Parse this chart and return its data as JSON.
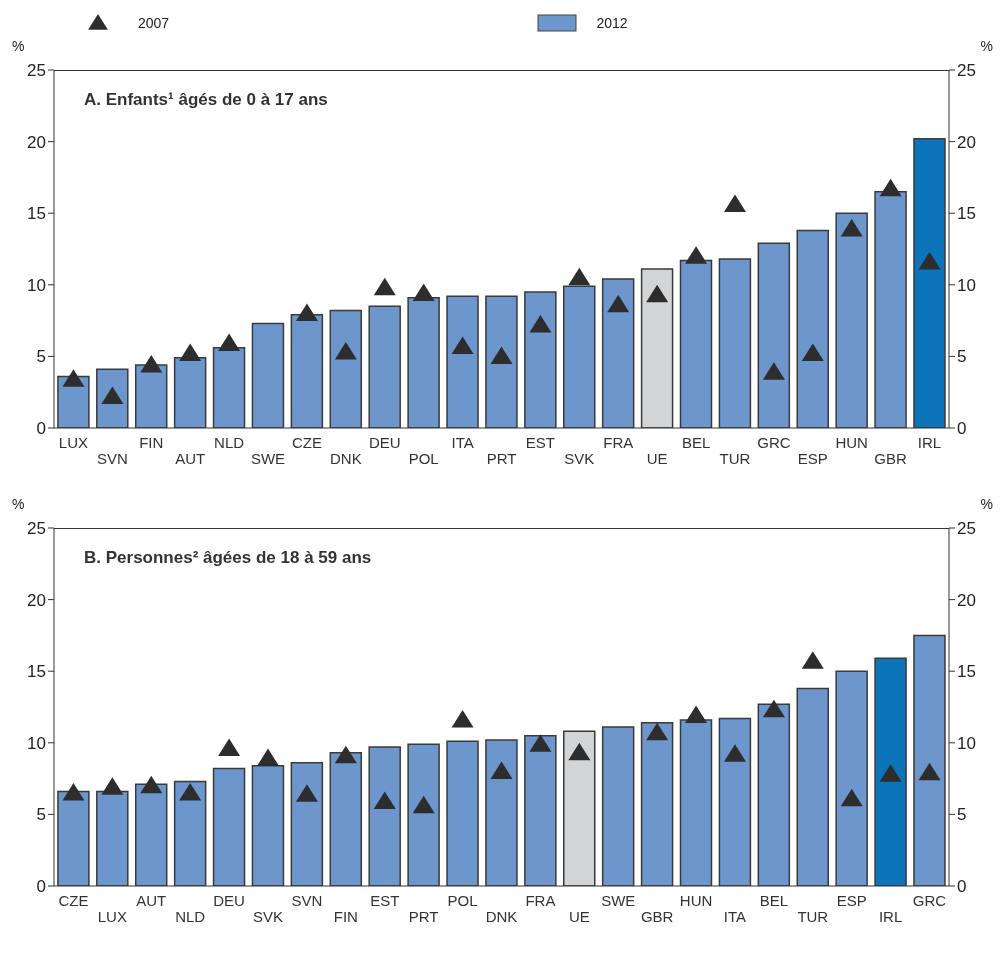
{
  "chart_data": [
    {
      "type": "bar",
      "title": "A. Enfants¹ âgés  de 0 à 17 ans",
      "ylabel": "%",
      "y2label": "%",
      "legend": "top",
      "marker": "triangle",
      "grid": false,
      "categories": [
        "LUX",
        "SVN",
        "FIN",
        "AUT",
        "NLD",
        "SWE",
        "CZE",
        "DNK",
        "DEU",
        "POL",
        "ITA",
        "PRT",
        "EST",
        "SVK",
        "FRA",
        "UE",
        "BEL",
        "TUR",
        "GRC",
        "ESP",
        "HUN",
        "GBR",
        "IRL"
      ],
      "ylim": [
        0,
        25
      ],
      "yticks": [
        0,
        5,
        10,
        15,
        20,
        25
      ],
      "y2lim": [
        0,
        25
      ],
      "y2ticks": [
        0,
        5,
        10,
        15,
        20,
        25
      ],
      "series": [
        {
          "name": "2007",
          "type": "scatter",
          "color": "#2d2d2d",
          "values": [
            3.4,
            2.2,
            4.4,
            5.2,
            5.9,
            null,
            8.0,
            5.3,
            9.8,
            9.4,
            5.7,
            5.0,
            7.2,
            10.5,
            8.6,
            9.3,
            12.0,
            15.6,
            3.9,
            5.2,
            13.9,
            16.7,
            11.6
          ]
        },
        {
          "name": "2012",
          "type": "bar",
          "color": "#6d96cd",
          "colors": [
            "#6d96cd",
            "#6d96cd",
            "#6d96cd",
            "#6d96cd",
            "#6d96cd",
            "#6d96cd",
            "#6d96cd",
            "#6d96cd",
            "#6d96cd",
            "#6d96cd",
            "#6d96cd",
            "#6d96cd",
            "#6d96cd",
            "#6d96cd",
            "#6d96cd",
            "#d3d4d6",
            "#6d96cd",
            "#6d96cd",
            "#6d96cd",
            "#6d96cd",
            "#6d96cd",
            "#6d96cd",
            "#0b74bb"
          ],
          "values": [
            3.6,
            4.1,
            4.4,
            4.9,
            5.6,
            7.3,
            7.9,
            8.2,
            8.5,
            9.1,
            9.2,
            9.2,
            9.5,
            9.9,
            10.4,
            11.1,
            11.7,
            11.8,
            12.9,
            13.8,
            15.0,
            16.5,
            20.2
          ]
        }
      ]
    },
    {
      "type": "bar",
      "title": "B. Personnes² âgées de 18 à 59 ans",
      "ylabel": "%",
      "y2label": "%",
      "legend": false,
      "marker": "triangle",
      "grid": false,
      "categories": [
        "CZE",
        "LUX",
        "AUT",
        "NLD",
        "DEU",
        "SVK",
        "SVN",
        "FIN",
        "EST",
        "PRT",
        "POL",
        "DNK",
        "FRA",
        "UE",
        "SWE",
        "GBR",
        "HUN",
        "ITA",
        "BEL",
        "TUR",
        "ESP",
        "IRL",
        "GRC"
      ],
      "ylim": [
        0,
        25
      ],
      "yticks": [
        0,
        5,
        10,
        15,
        20,
        25
      ],
      "y2lim": [
        0,
        25
      ],
      "y2ticks": [
        0,
        5,
        10,
        15,
        20,
        25
      ],
      "series": [
        {
          "name": "2007",
          "type": "scatter",
          "color": "#2d2d2d",
          "values": [
            6.5,
            6.9,
            7.0,
            6.5,
            9.6,
            8.9,
            6.4,
            9.1,
            5.9,
            5.6,
            11.6,
            8.0,
            9.9,
            9.3,
            null,
            10.7,
            11.9,
            9.2,
            12.3,
            15.7,
            6.1,
            7.8,
            7.9
          ]
        },
        {
          "name": "2012",
          "type": "bar",
          "color": "#6d96cd",
          "colors": [
            "#6d96cd",
            "#6d96cd",
            "#6d96cd",
            "#6d96cd",
            "#6d96cd",
            "#6d96cd",
            "#6d96cd",
            "#6d96cd",
            "#6d96cd",
            "#6d96cd",
            "#6d96cd",
            "#6d96cd",
            "#6d96cd",
            "#d3d4d6",
            "#6d96cd",
            "#6d96cd",
            "#6d96cd",
            "#6d96cd",
            "#6d96cd",
            "#6d96cd",
            "#6d96cd",
            "#0b74bb",
            "#6d96cd"
          ],
          "values": [
            6.6,
            6.6,
            7.1,
            7.3,
            8.2,
            8.4,
            8.6,
            9.3,
            9.7,
            9.9,
            10.1,
            10.2,
            10.5,
            10.8,
            11.1,
            11.4,
            11.6,
            11.7,
            12.7,
            13.8,
            15.0,
            15.9,
            17.5
          ]
        }
      ]
    }
  ]
}
